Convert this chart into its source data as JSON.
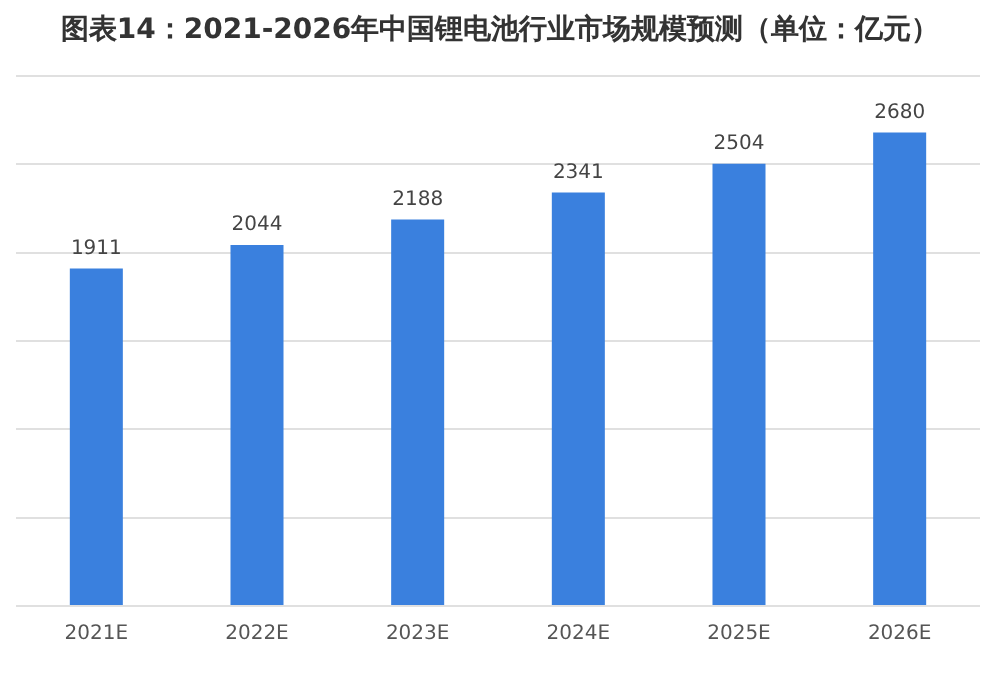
{
  "chart_data": {
    "type": "bar",
    "title": "图表14：2021-2026年中国锂电池行业市场规模预测（单位：亿元）",
    "categories": [
      "2021E",
      "2022E",
      "2023E",
      "2024E",
      "2025E",
      "2026E"
    ],
    "values": [
      1911,
      2044,
      2188,
      2341,
      2504,
      2680
    ],
    "color": "#3a80de",
    "ylim": [
      0,
      3000
    ],
    "yticks": [
      {
        "value": 0,
        "label": null
      },
      {
        "value": 500,
        "label": null
      },
      {
        "value": 1000,
        "label": null
      },
      {
        "value": 1500,
        "label": null
      },
      {
        "value": 2000,
        "label": null
      },
      {
        "value": 2500,
        "label": null
      },
      {
        "value": 3000,
        "label": null
      }
    ],
    "grid": "y",
    "tick_labels": "x",
    "data_labels": true
  }
}
